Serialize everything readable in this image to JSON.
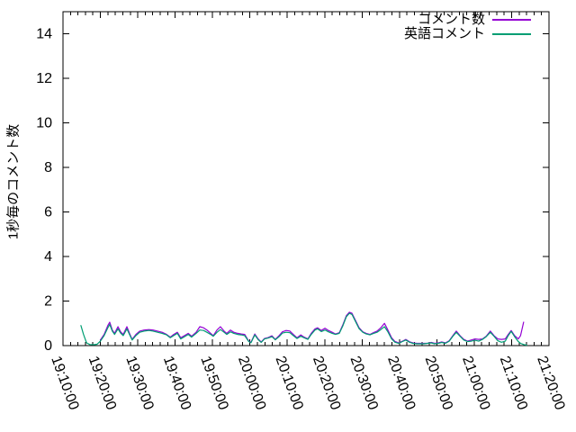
{
  "chart_data": {
    "type": "line",
    "title": "",
    "ylabel": "1秒毎のコメント数",
    "xlabel": "",
    "grid": false,
    "legend_position": "top-right-inside",
    "axis_color": "#000000",
    "background_color": "#ffffff",
    "ylim": [
      0,
      15
    ],
    "y_ticks": [
      0,
      2,
      4,
      6,
      8,
      10,
      12,
      14
    ],
    "x_unit": "minutes after 19:10:00",
    "x_range_minutes": [
      0,
      130
    ],
    "x_major_tick_minutes": 10,
    "x_minor_tick_minutes": 2,
    "x_tick_labels": [
      "19:10:00",
      "19:20:00",
      "19:30:00",
      "19:40:00",
      "19:50:00",
      "20:00:00",
      "20:10:00",
      "20:20:00",
      "20:30:00",
      "20:40:00",
      "20:50:00",
      "21:00:00",
      "21:10:00",
      "21:20:00"
    ],
    "series": [
      {
        "name": "コメント数",
        "color": "#9400d3",
        "points": [
          [
            10,
            0.25
          ],
          [
            11,
            0.5
          ],
          [
            12,
            0.9
          ],
          [
            12.5,
            1.05
          ],
          [
            13.2,
            0.7
          ],
          [
            13.8,
            0.55
          ],
          [
            14.7,
            0.85
          ],
          [
            15.4,
            0.62
          ],
          [
            16.1,
            0.5
          ],
          [
            17.1,
            0.85
          ],
          [
            17.8,
            0.55
          ],
          [
            18.5,
            0.28
          ],
          [
            19.5,
            0.5
          ],
          [
            20.5,
            0.65
          ],
          [
            21.7,
            0.7
          ],
          [
            23,
            0.72
          ],
          [
            24.1,
            0.7
          ],
          [
            25.3,
            0.65
          ],
          [
            26.5,
            0.6
          ],
          [
            27.7,
            0.5
          ],
          [
            28.7,
            0.38
          ],
          [
            29.6,
            0.5
          ],
          [
            30.6,
            0.6
          ],
          [
            31.5,
            0.35
          ],
          [
            32.5,
            0.45
          ],
          [
            33.5,
            0.55
          ],
          [
            34.4,
            0.42
          ],
          [
            35.6,
            0.6
          ],
          [
            36.6,
            0.85
          ],
          [
            37.6,
            0.8
          ],
          [
            38.5,
            0.7
          ],
          [
            39.5,
            0.55
          ],
          [
            40.2,
            0.45
          ],
          [
            41.2,
            0.7
          ],
          [
            42.1,
            0.85
          ],
          [
            43.1,
            0.65
          ],
          [
            43.8,
            0.55
          ],
          [
            44.8,
            0.7
          ],
          [
            45.7,
            0.6
          ],
          [
            46.7,
            0.55
          ],
          [
            47.7,
            0.52
          ],
          [
            48.6,
            0.5
          ],
          [
            49.7,
            0.2
          ],
          [
            50.3,
            0.15
          ],
          [
            51.3,
            0.52
          ],
          [
            52.2,
            0.3
          ],
          [
            53,
            0.16
          ],
          [
            53.9,
            0.32
          ],
          [
            54.9,
            0.36
          ],
          [
            55.9,
            0.44
          ],
          [
            56.8,
            0.28
          ],
          [
            57.8,
            0.45
          ],
          [
            58.7,
            0.62
          ],
          [
            59.7,
            0.68
          ],
          [
            60.7,
            0.65
          ],
          [
            61.6,
            0.5
          ],
          [
            62.6,
            0.35
          ],
          [
            63.6,
            0.48
          ],
          [
            64.5,
            0.38
          ],
          [
            65.5,
            0.3
          ],
          [
            66.4,
            0.55
          ],
          [
            67.4,
            0.75
          ],
          [
            68.1,
            0.8
          ],
          [
            69.1,
            0.68
          ],
          [
            70.1,
            0.78
          ],
          [
            71,
            0.68
          ],
          [
            72,
            0.6
          ],
          [
            72.9,
            0.52
          ],
          [
            73.9,
            0.58
          ],
          [
            74.9,
            0.95
          ],
          [
            75.8,
            1.35
          ],
          [
            76.6,
            1.5
          ],
          [
            77.3,
            1.45
          ],
          [
            78.2,
            1.15
          ],
          [
            79.2,
            0.8
          ],
          [
            80.2,
            0.62
          ],
          [
            81.1,
            0.55
          ],
          [
            82.1,
            0.5
          ],
          [
            83,
            0.58
          ],
          [
            84,
            0.65
          ],
          [
            85,
            0.8
          ],
          [
            86,
            1.0
          ],
          [
            86.9,
            0.7
          ],
          [
            87.9,
            0.35
          ],
          [
            88.8,
            0.18
          ],
          [
            89.8,
            0.12
          ],
          [
            90.8,
            0.2
          ],
          [
            91.7,
            0.28
          ],
          [
            92.7,
            0.17
          ],
          [
            93.6,
            0.12
          ],
          [
            94.6,
            0.1
          ],
          [
            95.6,
            0.1
          ],
          [
            96.5,
            0.1
          ],
          [
            97.5,
            0.1
          ],
          [
            98.5,
            0.14
          ],
          [
            99.4,
            0.1
          ],
          [
            100.4,
            0.12
          ],
          [
            101.3,
            0.16
          ],
          [
            102.3,
            0.12
          ],
          [
            103.3,
            0.22
          ],
          [
            104.3,
            0.45
          ],
          [
            105.2,
            0.65
          ],
          [
            106.2,
            0.45
          ],
          [
            107.2,
            0.28
          ],
          [
            108.2,
            0.2
          ],
          [
            109.2,
            0.25
          ],
          [
            110.2,
            0.3
          ],
          [
            111.2,
            0.28
          ],
          [
            112.2,
            0.3
          ],
          [
            113.2,
            0.42
          ],
          [
            114.3,
            0.65
          ],
          [
            115.3,
            0.45
          ],
          [
            116.3,
            0.3
          ],
          [
            117.3,
            0.28
          ],
          [
            118.3,
            0.3
          ],
          [
            119.1,
            0.5
          ],
          [
            119.9,
            0.68
          ],
          [
            120.8,
            0.45
          ],
          [
            121.8,
            0.3
          ],
          [
            122.4,
            0.45
          ],
          [
            123.2,
            1.05
          ]
        ]
      },
      {
        "name": "英語コメント",
        "color": "#009e73",
        "points": [
          [
            4.8,
            0.9
          ],
          [
            5.5,
            0.5
          ],
          [
            6.3,
            0.12
          ],
          [
            7.2,
            0.05
          ],
          [
            8.2,
            0.04
          ],
          [
            9.1,
            0.06
          ],
          [
            10,
            0.2
          ],
          [
            11,
            0.45
          ],
          [
            12,
            0.8
          ],
          [
            12.5,
            0.95
          ],
          [
            13.2,
            0.65
          ],
          [
            13.8,
            0.5
          ],
          [
            14.7,
            0.75
          ],
          [
            15.4,
            0.56
          ],
          [
            16.1,
            0.45
          ],
          [
            17.1,
            0.75
          ],
          [
            17.8,
            0.5
          ],
          [
            18.5,
            0.25
          ],
          [
            19.5,
            0.45
          ],
          [
            20.5,
            0.6
          ],
          [
            21.7,
            0.65
          ],
          [
            23,
            0.68
          ],
          [
            24.1,
            0.65
          ],
          [
            25.3,
            0.6
          ],
          [
            26.5,
            0.55
          ],
          [
            27.7,
            0.48
          ],
          [
            28.7,
            0.35
          ],
          [
            29.6,
            0.45
          ],
          [
            30.6,
            0.55
          ],
          [
            31.5,
            0.3
          ],
          [
            32.5,
            0.4
          ],
          [
            33.5,
            0.5
          ],
          [
            34.4,
            0.38
          ],
          [
            35.6,
            0.55
          ],
          [
            36.6,
            0.7
          ],
          [
            37.6,
            0.68
          ],
          [
            38.5,
            0.6
          ],
          [
            39.5,
            0.5
          ],
          [
            40.2,
            0.42
          ],
          [
            41.2,
            0.6
          ],
          [
            42.1,
            0.72
          ],
          [
            43.1,
            0.6
          ],
          [
            43.8,
            0.5
          ],
          [
            44.8,
            0.62
          ],
          [
            45.7,
            0.55
          ],
          [
            46.7,
            0.5
          ],
          [
            47.7,
            0.48
          ],
          [
            48.6,
            0.45
          ],
          [
            49.7,
            0.18
          ],
          [
            50.3,
            0.13
          ],
          [
            51.3,
            0.48
          ],
          [
            52.2,
            0.27
          ],
          [
            53,
            0.14
          ],
          [
            53.9,
            0.3
          ],
          [
            54.9,
            0.34
          ],
          [
            55.9,
            0.4
          ],
          [
            56.8,
            0.26
          ],
          [
            57.8,
            0.4
          ],
          [
            58.7,
            0.56
          ],
          [
            59.7,
            0.6
          ],
          [
            60.7,
            0.58
          ],
          [
            61.6,
            0.45
          ],
          [
            62.6,
            0.32
          ],
          [
            63.6,
            0.42
          ],
          [
            64.5,
            0.35
          ],
          [
            65.5,
            0.28
          ],
          [
            66.4,
            0.5
          ],
          [
            67.4,
            0.7
          ],
          [
            68.1,
            0.75
          ],
          [
            69.1,
            0.63
          ],
          [
            70.1,
            0.7
          ],
          [
            71,
            0.62
          ],
          [
            72,
            0.55
          ],
          [
            72.9,
            0.5
          ],
          [
            73.9,
            0.55
          ],
          [
            74.9,
            0.9
          ],
          [
            75.8,
            1.3
          ],
          [
            76.6,
            1.45
          ],
          [
            77.3,
            1.4
          ],
          [
            78.2,
            1.1
          ],
          [
            79.2,
            0.76
          ],
          [
            80.2,
            0.6
          ],
          [
            81.1,
            0.52
          ],
          [
            82.1,
            0.48
          ],
          [
            83,
            0.54
          ],
          [
            84,
            0.6
          ],
          [
            85,
            0.72
          ],
          [
            86,
            0.85
          ],
          [
            86.9,
            0.62
          ],
          [
            87.9,
            0.3
          ],
          [
            88.8,
            0.15
          ],
          [
            89.8,
            0.1
          ],
          [
            90.8,
            0.18
          ],
          [
            91.7,
            0.25
          ],
          [
            92.7,
            0.15
          ],
          [
            93.6,
            0.1
          ],
          [
            94.6,
            0.08
          ],
          [
            95.6,
            0.08
          ],
          [
            96.5,
            0.08
          ],
          [
            97.5,
            0.1
          ],
          [
            98.5,
            0.12
          ],
          [
            99.4,
            0.08
          ],
          [
            100.4,
            0.1
          ],
          [
            101.3,
            0.14
          ],
          [
            102.3,
            0.1
          ],
          [
            103.3,
            0.2
          ],
          [
            104.3,
            0.42
          ],
          [
            105.2,
            0.6
          ],
          [
            106.2,
            0.42
          ],
          [
            107.2,
            0.25
          ],
          [
            108.2,
            0.18
          ],
          [
            109.2,
            0.2
          ],
          [
            110.2,
            0.24
          ],
          [
            111.2,
            0.2
          ],
          [
            112.2,
            0.28
          ],
          [
            113.2,
            0.4
          ],
          [
            114.3,
            0.6
          ],
          [
            115.3,
            0.42
          ],
          [
            116.3,
            0.22
          ],
          [
            117.3,
            0.15
          ],
          [
            118.3,
            0.2
          ],
          [
            119.1,
            0.45
          ],
          [
            119.9,
            0.64
          ],
          [
            120.8,
            0.4
          ],
          [
            121.8,
            0.18
          ],
          [
            122.4,
            0.1
          ],
          [
            123.2,
            0.05
          ],
          [
            124,
            0.02
          ]
        ]
      }
    ]
  }
}
